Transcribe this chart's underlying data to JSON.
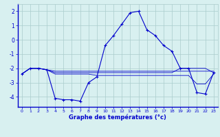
{
  "xlabel": "Graphe des températures (°c)",
  "hours": [
    0,
    1,
    2,
    3,
    4,
    5,
    6,
    7,
    8,
    9,
    10,
    11,
    12,
    13,
    14,
    15,
    16,
    17,
    18,
    19,
    20,
    21,
    22,
    23
  ],
  "temp_main": [
    -2.4,
    -2.0,
    -2.0,
    -2.1,
    -4.1,
    -4.2,
    -4.2,
    -4.3,
    -3.0,
    -2.6,
    -0.4,
    0.3,
    1.1,
    1.9,
    2.0,
    0.7,
    0.3,
    -0.4,
    -0.8,
    -2.0,
    -2.0,
    -3.7,
    -3.8,
    -2.3
  ],
  "temp_line2": [
    -2.4,
    -2.0,
    -2.0,
    -2.1,
    -2.2,
    -2.2,
    -2.2,
    -2.2,
    -2.2,
    -2.2,
    -2.2,
    -2.2,
    -2.2,
    -2.2,
    -2.2,
    -2.2,
    -2.2,
    -2.2,
    -2.2,
    -2.2,
    -2.2,
    -2.2,
    -2.2,
    -2.2
  ],
  "temp_line3": [
    -2.4,
    -2.0,
    -2.0,
    -2.1,
    -2.3,
    -2.3,
    -2.3,
    -2.3,
    -2.3,
    -2.3,
    -2.3,
    -2.3,
    -2.3,
    -2.3,
    -2.3,
    -2.3,
    -2.3,
    -2.3,
    -2.3,
    -2.0,
    -2.0,
    -2.0,
    -2.0,
    -2.3
  ],
  "temp_line4": [
    -2.4,
    -2.0,
    -2.0,
    -2.1,
    -2.4,
    -2.4,
    -2.4,
    -2.4,
    -2.4,
    -2.5,
    -2.5,
    -2.5,
    -2.5,
    -2.5,
    -2.5,
    -2.5,
    -2.5,
    -2.5,
    -2.5,
    -2.5,
    -2.5,
    -3.1,
    -3.1,
    -2.4
  ],
  "bg_color": "#d8f0f0",
  "grid_color": "#aacccc",
  "line_color": "#0000cc",
  "ylim": [
    -4.7,
    2.5
  ],
  "yticks": [
    2,
    1,
    0,
    -1,
    -2,
    -3,
    -4
  ],
  "xticks": [
    0,
    1,
    2,
    3,
    4,
    5,
    6,
    7,
    8,
    9,
    10,
    11,
    12,
    13,
    14,
    15,
    16,
    17,
    18,
    19,
    20,
    21,
    22,
    23
  ]
}
